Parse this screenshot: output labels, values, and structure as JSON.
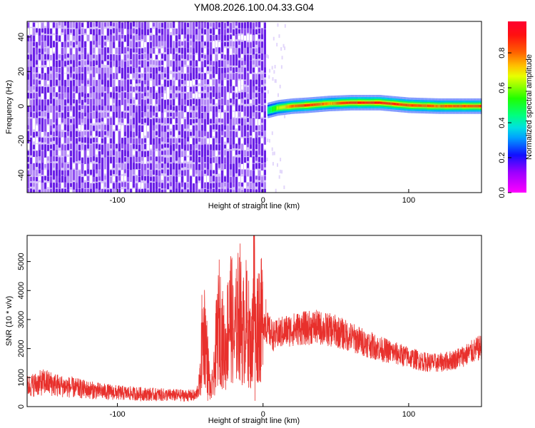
{
  "title": "YM08.2026.100.04.33.G04",
  "colors": {
    "snr_line": "#e8302c",
    "frame": "#000000",
    "background": "#ffffff",
    "noise_dark": "#6a1fe6",
    "noise_light": "#d8c3fb"
  },
  "chart_data": [
    {
      "type": "heatmap",
      "title": "",
      "xlabel": "Height of straight line (km)",
      "ylabel": "Frequency (Hz)",
      "xlim": [
        -162,
        150
      ],
      "ylim": [
        -50,
        49
      ],
      "xticks": [
        "-100",
        "0",
        "100"
      ],
      "xtick_values": [
        -100,
        0,
        100
      ],
      "yticks": [
        "40",
        "20",
        "0",
        "-20",
        "-40"
      ],
      "ytick_values": [
        40,
        20,
        0,
        -20,
        -40
      ],
      "grid": false,
      "description_of_content": [
        {
          "region": "noise",
          "x_from": -162,
          "x_to": 2,
          "freq_from": -50,
          "freq_to": 49,
          "amplitude": "low (~0.05-0.2)"
        },
        {
          "region": "transition",
          "x_from": 2,
          "x_to": 10,
          "freq_center": -2,
          "amplitude": "~0.3-0.5"
        },
        {
          "region": "band",
          "x_from": 10,
          "x_to": 150,
          "freq_center": 1,
          "amplitude": "high (~0.7-1.0)"
        }
      ],
      "band_ridge": [
        {
          "x": 3,
          "f": -2.5,
          "a": 0.45
        },
        {
          "x": 10,
          "f": -1,
          "a": 0.65
        },
        {
          "x": 20,
          "f": 0,
          "a": 0.85
        },
        {
          "x": 30,
          "f": 0.5,
          "a": 0.95
        },
        {
          "x": 45,
          "f": 1.5,
          "a": 0.8
        },
        {
          "x": 60,
          "f": 2,
          "a": 0.95
        },
        {
          "x": 80,
          "f": 2,
          "a": 0.98
        },
        {
          "x": 100,
          "f": 0.5,
          "a": 0.9
        },
        {
          "x": 120,
          "f": 0,
          "a": 0.85
        },
        {
          "x": 150,
          "f": 0,
          "a": 0.9
        }
      ],
      "colorbar": {
        "label": "Normalized spectral amplitude",
        "ticks": [
          "0.0",
          "0.2",
          "0.4",
          "0.6",
          "0.8"
        ],
        "tick_values": [
          0.0,
          0.2,
          0.4,
          0.6,
          0.8
        ],
        "range": [
          0,
          0.98
        ]
      }
    },
    {
      "type": "line",
      "title": "",
      "xlabel": "Height of straight line (km)",
      "ylabel": "SNR (10 * v/v)",
      "xlim": [
        -162,
        150
      ],
      "ylim": [
        0,
        5900
      ],
      "xticks": [
        "-100",
        "0",
        "100"
      ],
      "xtick_values": [
        -100,
        0,
        100
      ],
      "yticks": [
        "0",
        "1000",
        "2000",
        "3000",
        "4000",
        "5000"
      ],
      "ytick_values": [
        0,
        1000,
        2000,
        3000,
        4000,
        5000
      ],
      "grid": false,
      "series": [
        {
          "x": [
            -162,
            -150,
            -140,
            -130,
            -120,
            -110,
            -100,
            -90,
            -80,
            -70,
            -60,
            -50,
            -46,
            -43,
            -42,
            -40,
            -38,
            -36,
            -34,
            -32,
            -30,
            -28,
            -26,
            -24,
            -22,
            -20,
            -18,
            -16,
            -14,
            -12,
            -10,
            -8,
            -6,
            -5,
            -4,
            -3,
            -2,
            0,
            2,
            4,
            6,
            8,
            10,
            15,
            20,
            25,
            30,
            35,
            40,
            45,
            50,
            55,
            60,
            70,
            80,
            90,
            100,
            110,
            120,
            130,
            140,
            150
          ],
          "y": [
            700,
            850,
            720,
            650,
            580,
            520,
            480,
            450,
            430,
            410,
            390,
            380,
            380,
            900,
            2100,
            2600,
            1500,
            500,
            900,
            2200,
            3000,
            2400,
            1800,
            2800,
            3300,
            2200,
            2900,
            3400,
            2500,
            3000,
            2600,
            1800,
            4200,
            2200,
            2800,
            3200,
            2900,
            3000,
            2800,
            2600,
            2500,
            2400,
            2500,
            2600,
            2650,
            2700,
            2700,
            2750,
            2700,
            2650,
            2600,
            2500,
            2400,
            2200,
            2000,
            1850,
            1700,
            1550,
            1500,
            1600,
            1800,
            2050
          ],
          "annotations_peaks": [
            {
              "x": -42,
              "y": 3850
            },
            {
              "x": -38,
              "y": 200
            },
            {
              "x": -23,
              "y": 4350
            },
            {
              "x": -15,
              "y": 3950
            },
            {
              "x": -7,
              "y": 3900
            },
            {
              "x": -6.5,
              "y": 5900
            },
            {
              "x": -5.5,
              "y": 200
            },
            {
              "x": 2,
              "y": 3700
            }
          ]
        }
      ]
    }
  ]
}
